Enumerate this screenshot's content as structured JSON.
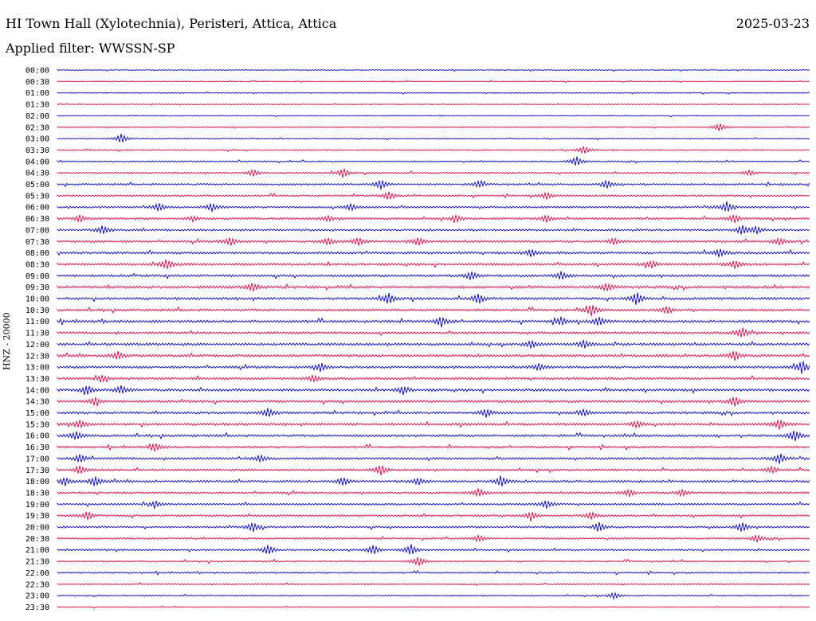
{
  "header": {
    "station": "HI Town Hall (Xylotechnia), Peristeri, Attica, Attica",
    "date": "2025-03-23",
    "filter": "Applied filter: WWSSN-SP"
  },
  "chart_data": {
    "type": "line",
    "title": "HI Town Hall (Xylotechnia), Peristeri, Attica, Attica",
    "ylabel": "HNZ - 20000",
    "colors": [
      "#0000cc",
      "#e8003a"
    ],
    "rows": [
      "00:00",
      "00:30",
      "01:00",
      "01:30",
      "02:00",
      "02:30",
      "03:00",
      "03:30",
      "04:00",
      "04:30",
      "05:00",
      "05:30",
      "06:00",
      "06:30",
      "07:00",
      "07:30",
      "08:00",
      "08:30",
      "09:00",
      "09:30",
      "10:00",
      "10:30",
      "11:00",
      "11:30",
      "12:00",
      "12:30",
      "13:00",
      "13:30",
      "14:00",
      "14:30",
      "15:00",
      "15:30",
      "16:00",
      "16:30",
      "17:00",
      "17:30",
      "18:00",
      "18:30",
      "19:00",
      "19:30",
      "20:00",
      "20:30",
      "21:00",
      "21:30",
      "22:00",
      "22:30",
      "23:00",
      "23:30"
    ],
    "noise": [
      0.6,
      0.6,
      0.6,
      0.6,
      0.6,
      0.7,
      0.7,
      0.8,
      0.9,
      1.0,
      1.1,
      1.1,
      1.2,
      1.3,
      1.3,
      1.4,
      1.5,
      1.5,
      1.5,
      1.6,
      1.6,
      1.5,
      1.6,
      1.5,
      1.5,
      1.6,
      1.5,
      1.5,
      1.6,
      1.5,
      1.5,
      1.5,
      1.5,
      1.4,
      1.4,
      1.4,
      1.4,
      1.3,
      1.2,
      1.2,
      1.2,
      1.1,
      1.1,
      1.0,
      1.0,
      0.9,
      0.8,
      0.6
    ],
    "events": [
      [],
      [],
      [],
      [],
      [],
      [
        [
          0.88,
          5
        ]
      ],
      [
        [
          0.085,
          6
        ]
      ],
      [
        [
          0.7,
          5
        ]
      ],
      [
        [
          0.69,
          6
        ]
      ],
      [
        [
          0.26,
          4
        ],
        [
          0.38,
          6
        ],
        [
          0.92,
          3
        ]
      ],
      [
        [
          0.43,
          6
        ],
        [
          0.56,
          4
        ],
        [
          0.73,
          5
        ]
      ],
      [
        [
          0.44,
          5
        ],
        [
          0.65,
          4
        ]
      ],
      [
        [
          0.135,
          5
        ],
        [
          0.205,
          5
        ],
        [
          0.39,
          4
        ],
        [
          0.89,
          7
        ]
      ],
      [
        [
          0.03,
          4
        ],
        [
          0.18,
          3
        ],
        [
          0.36,
          3
        ],
        [
          0.53,
          4
        ],
        [
          0.65,
          4
        ],
        [
          0.9,
          5
        ]
      ],
      [
        [
          0.06,
          5
        ],
        [
          0.91,
          6
        ],
        [
          0.93,
          4
        ]
      ],
      [
        [
          0.23,
          5
        ],
        [
          0.36,
          4
        ],
        [
          0.4,
          5
        ],
        [
          0.48,
          5
        ],
        [
          0.74,
          4
        ],
        [
          0.96,
          4
        ]
      ],
      [
        [
          0.63,
          4
        ],
        [
          0.88,
          5
        ]
      ],
      [
        [
          0.145,
          6
        ],
        [
          0.79,
          4
        ],
        [
          0.9,
          5
        ]
      ],
      [
        [
          0.55,
          5
        ],
        [
          0.67,
          5
        ]
      ],
      [
        [
          0.26,
          5
        ],
        [
          0.73,
          5
        ]
      ],
      [
        [
          0.44,
          7
        ],
        [
          0.56,
          6
        ],
        [
          0.77,
          8
        ]
      ],
      [
        [
          0.71,
          7
        ],
        [
          0.81,
          4
        ]
      ],
      [
        [
          0.51,
          6
        ],
        [
          0.67,
          5
        ],
        [
          0.72,
          5
        ]
      ],
      [
        [
          0.91,
          6
        ]
      ],
      [
        [
          0.63,
          5
        ],
        [
          0.7,
          5
        ]
      ],
      [
        [
          0.08,
          5
        ],
        [
          0.9,
          6
        ]
      ],
      [
        [
          0.35,
          5
        ],
        [
          0.64,
          4
        ],
        [
          0.99,
          8
        ]
      ],
      [
        [
          0.06,
          4
        ],
        [
          0.34,
          4
        ]
      ],
      [
        [
          0.04,
          5
        ],
        [
          0.085,
          5
        ],
        [
          0.46,
          5
        ]
      ],
      [
        [
          0.05,
          5
        ],
        [
          0.9,
          6
        ]
      ],
      [
        [
          0.28,
          5
        ],
        [
          0.57,
          5
        ],
        [
          0.7,
          4
        ]
      ],
      [
        [
          0.03,
          5
        ],
        [
          0.77,
          4
        ],
        [
          0.96,
          6
        ]
      ],
      [
        [
          0.025,
          5
        ],
        [
          0.98,
          7
        ]
      ],
      [
        [
          0.13,
          5
        ]
      ],
      [
        [
          0.03,
          5
        ],
        [
          0.27,
          4
        ],
        [
          0.96,
          6
        ]
      ],
      [
        [
          0.03,
          5
        ],
        [
          0.43,
          6
        ],
        [
          0.95,
          4
        ]
      ],
      [
        [
          0.01,
          5
        ],
        [
          0.05,
          6
        ],
        [
          0.38,
          5
        ],
        [
          0.48,
          4
        ],
        [
          0.59,
          7
        ]
      ],
      [
        [
          0.56,
          5
        ],
        [
          0.76,
          4
        ],
        [
          0.83,
          4
        ]
      ],
      [
        [
          0.13,
          4
        ],
        [
          0.65,
          5
        ]
      ],
      [
        [
          0.04,
          5
        ],
        [
          0.63,
          5
        ],
        [
          0.71,
          4
        ]
      ],
      [
        [
          0.26,
          6
        ],
        [
          0.72,
          6
        ],
        [
          0.91,
          6
        ]
      ],
      [
        [
          0.56,
          4
        ],
        [
          0.93,
          4
        ]
      ],
      [
        [
          0.28,
          6
        ],
        [
          0.42,
          6
        ],
        [
          0.47,
          7
        ]
      ],
      [
        [
          0.48,
          6
        ]
      ],
      [],
      [],
      [
        [
          0.74,
          4
        ]
      ],
      []
    ]
  }
}
